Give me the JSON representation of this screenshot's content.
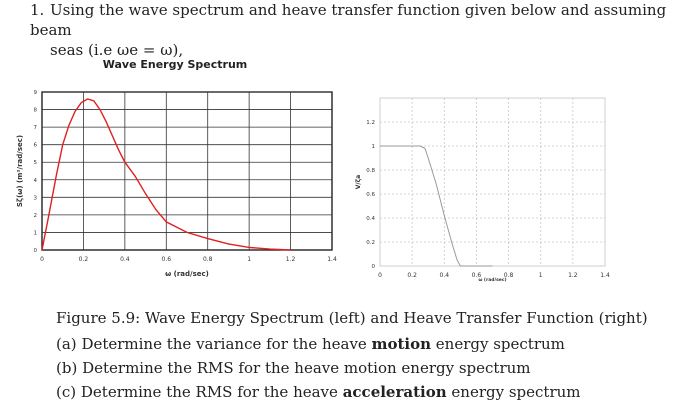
{
  "problem": {
    "number": "1.",
    "line1": "Using the wave spectrum and heave transfer function given below and assuming beam",
    "line2": "seas (i.e ωe = ω),"
  },
  "caption": "Figure 5.9: Wave Energy Spectrum (left) and Heave Transfer Function (right)",
  "items": [
    {
      "label": "(a)",
      "pre": "Determine the variance for the heave",
      "bold": "motion",
      "post": "energy spectrum"
    },
    {
      "label": "(b)",
      "pre": "Determine the RMS for the heave motion energy spectrum",
      "bold": "",
      "post": ""
    },
    {
      "label": "(c)",
      "pre": "Determine the RMS for the heave",
      "bold": "acceleration",
      "post": "energy spectrum"
    }
  ],
  "chart_data": [
    {
      "type": "line",
      "title": "Wave Energy Spectrum",
      "xlabel": "ω (rad/sec)",
      "ylabel": "Sζ(ω) (m²/rad/sec)",
      "xlim": [
        0,
        1.4
      ],
      "ylim": [
        0,
        9
      ],
      "xticks": [
        "0",
        "0.2",
        "0.4",
        "0.6",
        "0.8",
        "1",
        "1.2",
        "1.4"
      ],
      "yticks": [
        "0",
        "1",
        "2",
        "3",
        "4",
        "5",
        "6",
        "7",
        "8",
        "9"
      ],
      "grid": true,
      "series": [
        {
          "color": "#e02020",
          "x": [
            0,
            0.03,
            0.07,
            0.1,
            0.13,
            0.16,
            0.19,
            0.22,
            0.25,
            0.28,
            0.31,
            0.34,
            0.37,
            0.4,
            0.45,
            0.5,
            0.55,
            0.6,
            0.7,
            0.8,
            0.9,
            1.0,
            1.1,
            1.2
          ],
          "y": [
            0,
            1.8,
            4.3,
            6.0,
            7.1,
            7.9,
            8.4,
            8.6,
            8.5,
            8.0,
            7.3,
            6.5,
            5.7,
            5.0,
            4.2,
            3.2,
            2.3,
            1.6,
            1.0,
            0.65,
            0.35,
            0.15,
            0.05,
            0.0
          ]
        }
      ]
    },
    {
      "type": "line",
      "title": "",
      "xlabel": "ω (rad/sec)",
      "ylabel": "V/ζa",
      "xlim": [
        0,
        1.4
      ],
      "ylim": [
        0,
        1.4
      ],
      "xticks": [
        "0",
        "0.2",
        "0.4",
        "0.6",
        "0.8",
        "1",
        "1.2",
        "1.4"
      ],
      "yticks": [
        "0",
        "0.2",
        "0.4",
        "0.6",
        "0.8",
        "1",
        "1.2"
      ],
      "grid": true,
      "series": [
        {
          "color": "#9a9a9a",
          "x": [
            0,
            0.25,
            0.28,
            0.3,
            0.35,
            0.4,
            0.45,
            0.48,
            0.5,
            0.7
          ],
          "y": [
            1,
            1,
            0.98,
            0.9,
            0.68,
            0.42,
            0.18,
            0.05,
            0,
            0
          ]
        }
      ]
    }
  ]
}
